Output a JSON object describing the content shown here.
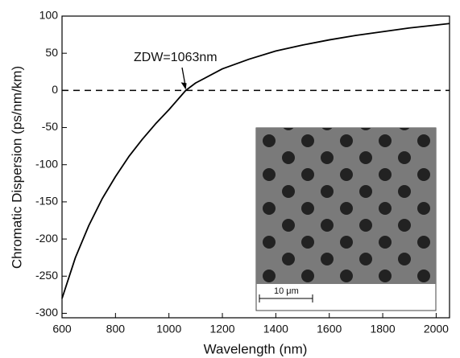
{
  "chart_data": {
    "type": "line",
    "x_label": "Wavelength (nm)",
    "y_label": "Chromatic Dispersion (ps/nm/km)",
    "x": [
      600,
      650,
      700,
      750,
      800,
      850,
      900,
      950,
      1000,
      1063,
      1100,
      1200,
      1300,
      1400,
      1500,
      1600,
      1700,
      1800,
      1900,
      2000,
      2050
    ],
    "series": [
      {
        "color": "#000000",
        "values": [
          -280,
          -225,
          -182,
          -146,
          -116,
          -89,
          -66,
          -45,
          -26,
          0,
          10,
          29,
          42,
          53,
          61,
          68,
          74,
          79,
          84,
          88,
          90
        ]
      }
    ],
    "xlim": [
      600,
      2050
    ],
    "xticks": [
      600,
      800,
      1000,
      1200,
      1400,
      1600,
      1800,
      2000
    ],
    "ylim": [
      -306,
      100
    ],
    "yticks": [
      100,
      50,
      0,
      -50,
      -100,
      -150,
      -200,
      -250,
      -300
    ],
    "reference_line": 0,
    "annotation": {
      "text": "ZDW=1063nm",
      "x": 1063,
      "y": 0
    },
    "inset": {
      "scale_label": "10 μm"
    }
  }
}
